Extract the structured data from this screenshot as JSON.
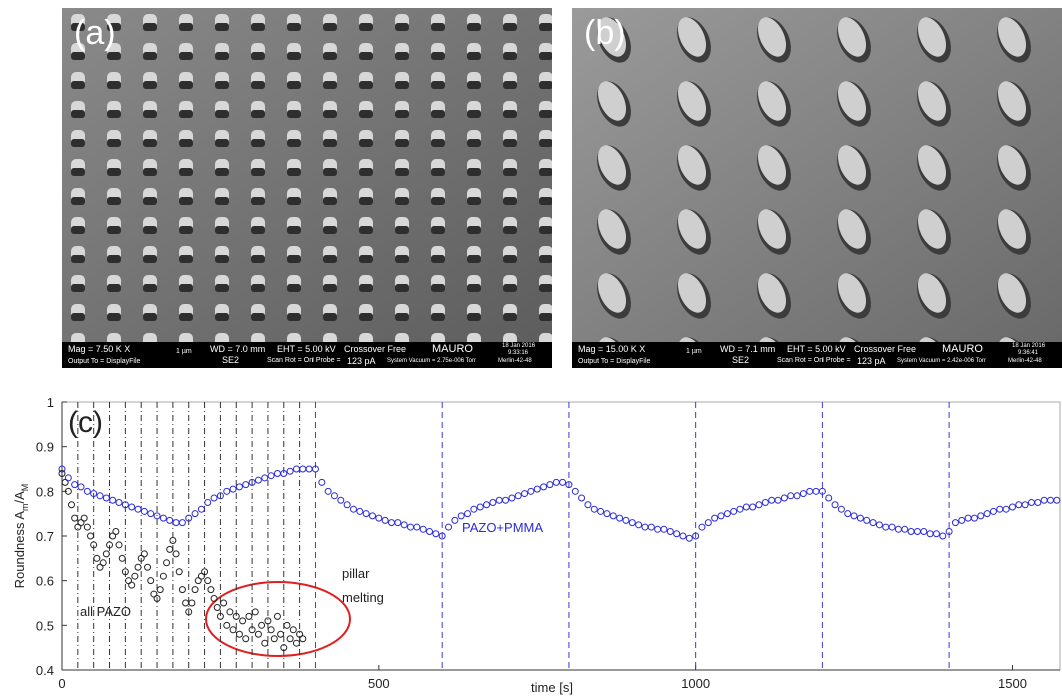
{
  "panels": [
    {
      "label": "(a)",
      "info": [
        "Mag =  7.50 K X",
        "Output To = DisplayFile",
        "1 µm",
        "SE2",
        "WD = 7.0 mm",
        "EHT = 5.00 kV",
        "Crossover Free",
        "MAURO",
        "Scan Rot = On",
        "I Probe =",
        "123 pA",
        "System Vacuum = 2.75e-006 Torr",
        "18 Jan 2016",
        "9:33:16",
        "Merlin-42-48"
      ]
    },
    {
      "label": "(b)",
      "info": [
        "Mag =  15.00 K X",
        "Output To = DisplayFile",
        "1 µm",
        "SE2",
        "WD = 7.1 mm",
        "EHT = 5.00 kV",
        "Crossover Free",
        "MAURO",
        "Scan Rot = On",
        "I Probe =",
        "123 pA",
        "System Vacuum = 2.42e-006 Torr",
        "18 Jan 2016",
        "9:36:41",
        "Merlin-42-48"
      ]
    }
  ],
  "chart_data": {
    "type": "scatter",
    "panel_label": "(c)",
    "xlabel": "time [s]",
    "ylabel": [
      "Roundness A",
      "m",
      "/A",
      "M"
    ],
    "xlim": [
      0,
      1575
    ],
    "ylim": [
      0.4,
      1
    ],
    "xticks": [
      0,
      500,
      1000,
      1500
    ],
    "yticks": [
      0.4,
      0.5,
      0.6,
      0.7,
      0.8,
      0.9,
      1
    ],
    "annotations": [
      "all PAZO",
      "pillar",
      "melting",
      "PAZO+PMMA"
    ],
    "vlines_blue": [
      400,
      600,
      800,
      1000,
      1200,
      1400
    ],
    "vlines_black": [
      25,
      50,
      75,
      100,
      125,
      150,
      175,
      200,
      225,
      250,
      275,
      300,
      325,
      350,
      375
    ],
    "series": [
      {
        "name": "PAZO+PMMA",
        "color": "#2a2ad8",
        "x": [
          0,
          10,
          20,
          30,
          40,
          50,
          60,
          70,
          80,
          90,
          100,
          110,
          120,
          130,
          140,
          150,
          160,
          170,
          180,
          190,
          200,
          210,
          220,
          230,
          240,
          250,
          260,
          270,
          280,
          290,
          300,
          310,
          320,
          330,
          340,
          350,
          360,
          370,
          380,
          390,
          400,
          410,
          420,
          430,
          440,
          450,
          460,
          470,
          480,
          490,
          500,
          510,
          520,
          530,
          540,
          550,
          560,
          570,
          580,
          590,
          600,
          610,
          620,
          630,
          640,
          650,
          660,
          670,
          680,
          690,
          700,
          710,
          720,
          730,
          740,
          750,
          760,
          770,
          780,
          790,
          800,
          810,
          820,
          830,
          840,
          850,
          860,
          870,
          880,
          890,
          900,
          910,
          920,
          930,
          940,
          950,
          960,
          970,
          980,
          990,
          1000,
          1010,
          1020,
          1030,
          1040,
          1050,
          1060,
          1070,
          1080,
          1090,
          1100,
          1110,
          1120,
          1130,
          1140,
          1150,
          1160,
          1170,
          1180,
          1190,
          1200,
          1210,
          1220,
          1230,
          1240,
          1250,
          1260,
          1270,
          1280,
          1290,
          1300,
          1310,
          1320,
          1330,
          1340,
          1350,
          1360,
          1370,
          1380,
          1390,
          1400,
          1410,
          1420,
          1430,
          1440,
          1450,
          1460,
          1470,
          1480,
          1490,
          1500,
          1510,
          1520,
          1530,
          1540,
          1550,
          1560,
          1570
        ],
        "values": [
          0.85,
          0.83,
          0.815,
          0.81,
          0.8,
          0.795,
          0.79,
          0.785,
          0.78,
          0.775,
          0.77,
          0.765,
          0.76,
          0.755,
          0.75,
          0.745,
          0.74,
          0.735,
          0.73,
          0.73,
          0.74,
          0.75,
          0.76,
          0.775,
          0.785,
          0.79,
          0.8,
          0.805,
          0.81,
          0.815,
          0.82,
          0.825,
          0.83,
          0.835,
          0.84,
          0.84,
          0.845,
          0.85,
          0.85,
          0.85,
          0.85,
          0.82,
          0.8,
          0.79,
          0.78,
          0.77,
          0.76,
          0.755,
          0.75,
          0.745,
          0.74,
          0.735,
          0.73,
          0.73,
          0.725,
          0.72,
          0.72,
          0.715,
          0.71,
          0.705,
          0.7,
          0.72,
          0.735,
          0.745,
          0.75,
          0.76,
          0.765,
          0.77,
          0.775,
          0.78,
          0.78,
          0.785,
          0.79,
          0.795,
          0.8,
          0.805,
          0.81,
          0.815,
          0.82,
          0.82,
          0.815,
          0.8,
          0.785,
          0.77,
          0.76,
          0.755,
          0.75,
          0.745,
          0.74,
          0.735,
          0.73,
          0.725,
          0.72,
          0.72,
          0.715,
          0.715,
          0.71,
          0.705,
          0.7,
          0.695,
          0.7,
          0.72,
          0.73,
          0.74,
          0.745,
          0.75,
          0.755,
          0.76,
          0.765,
          0.765,
          0.77,
          0.775,
          0.78,
          0.78,
          0.785,
          0.79,
          0.79,
          0.795,
          0.8,
          0.8,
          0.8,
          0.785,
          0.77,
          0.76,
          0.75,
          0.745,
          0.74,
          0.735,
          0.73,
          0.725,
          0.72,
          0.72,
          0.715,
          0.715,
          0.71,
          0.71,
          0.71,
          0.705,
          0.705,
          0.7,
          0.71,
          0.73,
          0.735,
          0.74,
          0.74,
          0.745,
          0.75,
          0.755,
          0.76,
          0.76,
          0.765,
          0.77,
          0.77,
          0.775,
          0.775,
          0.78,
          0.78,
          0.78
        ]
      },
      {
        "name": "all PAZO",
        "color": "#222222",
        "x": [
          0,
          5,
          10,
          15,
          20,
          25,
          30,
          35,
          40,
          45,
          50,
          55,
          60,
          65,
          70,
          75,
          80,
          85,
          90,
          95,
          100,
          105,
          110,
          115,
          120,
          125,
          130,
          135,
          140,
          145,
          150,
          155,
          160,
          165,
          170,
          175,
          180,
          185,
          190,
          195,
          200,
          205,
          210,
          215,
          220,
          225,
          230,
          235,
          240,
          245,
          250,
          255,
          260,
          265,
          270,
          275,
          280,
          285,
          290,
          295,
          300,
          305,
          310,
          315,
          320,
          325,
          330,
          335,
          340,
          345,
          350,
          355,
          360,
          365,
          370,
          375,
          380
        ],
        "values": [
          0.84,
          0.82,
          0.8,
          0.77,
          0.74,
          0.72,
          0.73,
          0.74,
          0.72,
          0.7,
          0.68,
          0.65,
          0.63,
          0.64,
          0.66,
          0.68,
          0.7,
          0.71,
          0.68,
          0.65,
          0.62,
          0.6,
          0.59,
          0.61,
          0.63,
          0.65,
          0.66,
          0.63,
          0.6,
          0.57,
          0.56,
          0.58,
          0.61,
          0.64,
          0.67,
          0.69,
          0.66,
          0.62,
          0.58,
          0.55,
          0.53,
          0.55,
          0.58,
          0.6,
          0.61,
          0.62,
          0.6,
          0.58,
          0.56,
          0.54,
          0.52,
          0.55,
          0.5,
          0.53,
          0.49,
          0.52,
          0.48,
          0.51,
          0.47,
          0.52,
          0.49,
          0.53,
          0.48,
          0.5,
          0.46,
          0.51,
          0.49,
          0.47,
          0.52,
          0.48,
          0.45,
          0.5,
          0.47,
          0.49,
          0.46,
          0.48,
          0.47
        ]
      }
    ]
  }
}
